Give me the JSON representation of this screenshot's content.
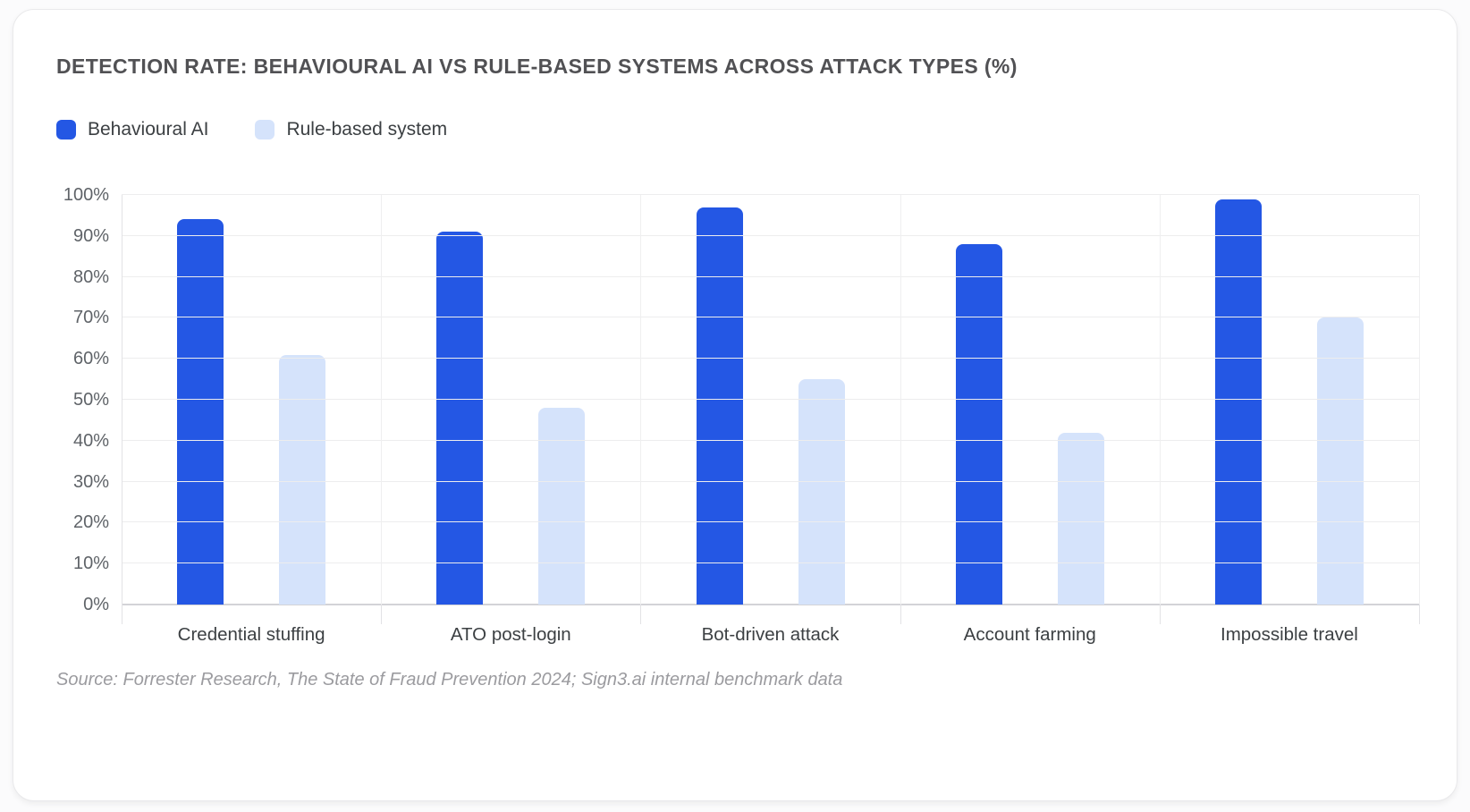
{
  "card": {
    "title": "DETECTION RATE: BEHAVIOURAL AI VS RULE-BASED SYSTEMS ACROSS ATTACK TYPES (%)"
  },
  "chart_data": {
    "type": "bar",
    "title": "DETECTION RATE: BEHAVIOURAL AI VS RULE-BASED SYSTEMS ACROSS ATTACK TYPES (%)",
    "categories": [
      "Credential stuffing",
      "ATO post-login",
      "Bot-driven attack",
      "Account farming",
      "Impossible travel"
    ],
    "series": [
      {
        "name": "Behavioural AI",
        "color": "#2457e4",
        "values": [
          94,
          91,
          97,
          88,
          99
        ]
      },
      {
        "name": "Rule-based system",
        "color": "#d5e3fb",
        "values": [
          61,
          48,
          55,
          42,
          70
        ]
      }
    ],
    "xlabel": "",
    "ylabel": "",
    "ylim": [
      0,
      100
    ],
    "y_ticks": [
      "0%",
      "10%",
      "20%",
      "30%",
      "40%",
      "50%",
      "60%",
      "70%",
      "80%",
      "90%",
      "100%"
    ],
    "grid": true,
    "legend_position": "top-left"
  },
  "source_note": "Source: Forrester Research, The State of Fraud Prevention 2024; Sign3.ai internal benchmark data"
}
